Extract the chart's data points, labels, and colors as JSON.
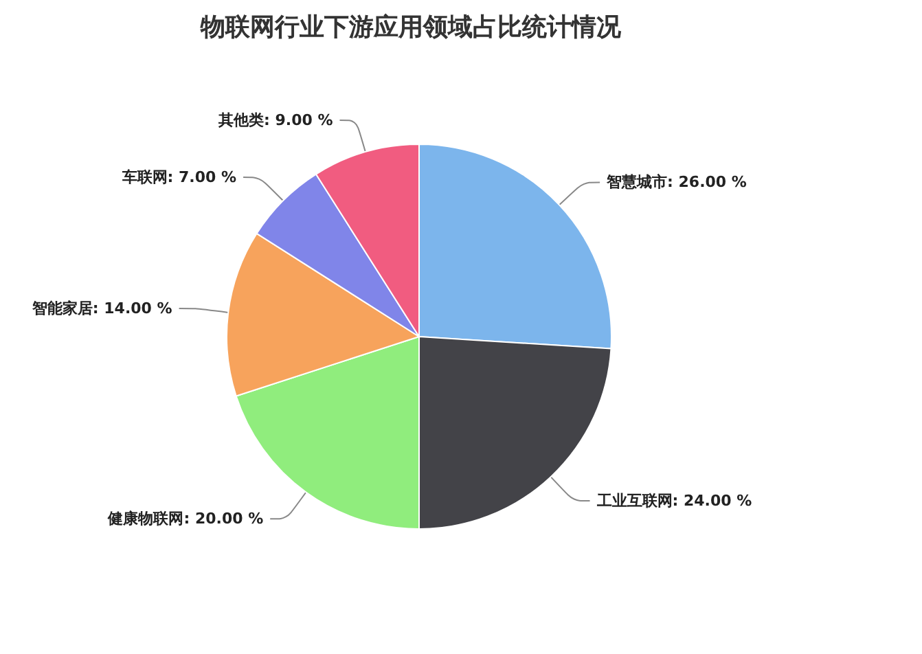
{
  "chart_data": {
    "type": "pie",
    "title": "物联网行业下游应用领域占比统计情况",
    "categories": [
      "智慧城市",
      "工业互联网",
      "健康物联网",
      "智能家居",
      "车联网",
      "其他类"
    ],
    "values": [
      26,
      24,
      20,
      14,
      7,
      9
    ],
    "value_labels": [
      "26.00 %",
      "24.00 %",
      "20.00 %",
      "14.00 %",
      "7.00 %",
      "9.00 %"
    ],
    "colors": [
      "#7cb5ec",
      "#434348",
      "#90ed7d",
      "#f7a35c",
      "#8085e9",
      "#f15c80"
    ],
    "legend": false
  }
}
